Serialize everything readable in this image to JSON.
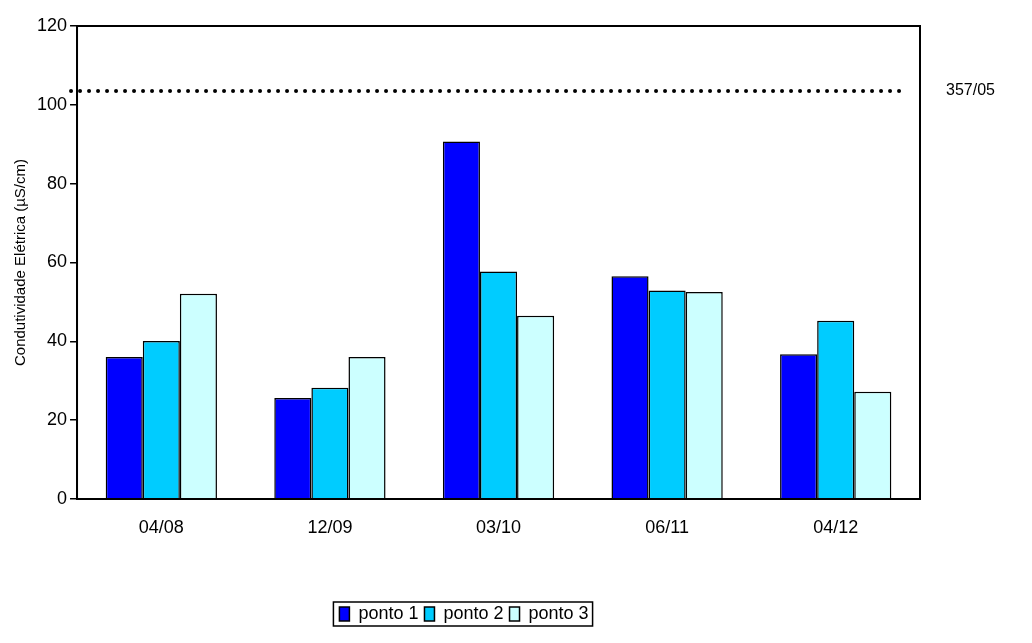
{
  "chart_data": {
    "type": "bar",
    "ylabel": "Condutividade Elétrica (µS/cm)",
    "categories": [
      "04/08",
      "12/09",
      "03/10",
      "06/11",
      "04/12"
    ],
    "series": [
      {
        "name": "ponto 1",
        "color": "#0000ff",
        "values": [
          36.0,
          25.6,
          90.7,
          56.5,
          36.7
        ]
      },
      {
        "name": "ponto 2",
        "color": "#00ccff",
        "values": [
          40.1,
          28.2,
          57.7,
          52.9,
          45.2
        ]
      },
      {
        "name": "ponto 3",
        "color": "#ccffff",
        "values": [
          52.1,
          36.0,
          46.5,
          52.5,
          27.2
        ]
      }
    ],
    "ylim": [
      0,
      120
    ],
    "yticks": [
      0,
      20,
      40,
      60,
      80,
      100,
      120
    ],
    "grid": false,
    "legend": "bottom",
    "ref_lines": [
      {
        "axis": "y",
        "value": 103.5,
        "line_style": "dotted",
        "color": "#000000"
      }
    ],
    "annotations": [
      "357/05"
    ]
  }
}
